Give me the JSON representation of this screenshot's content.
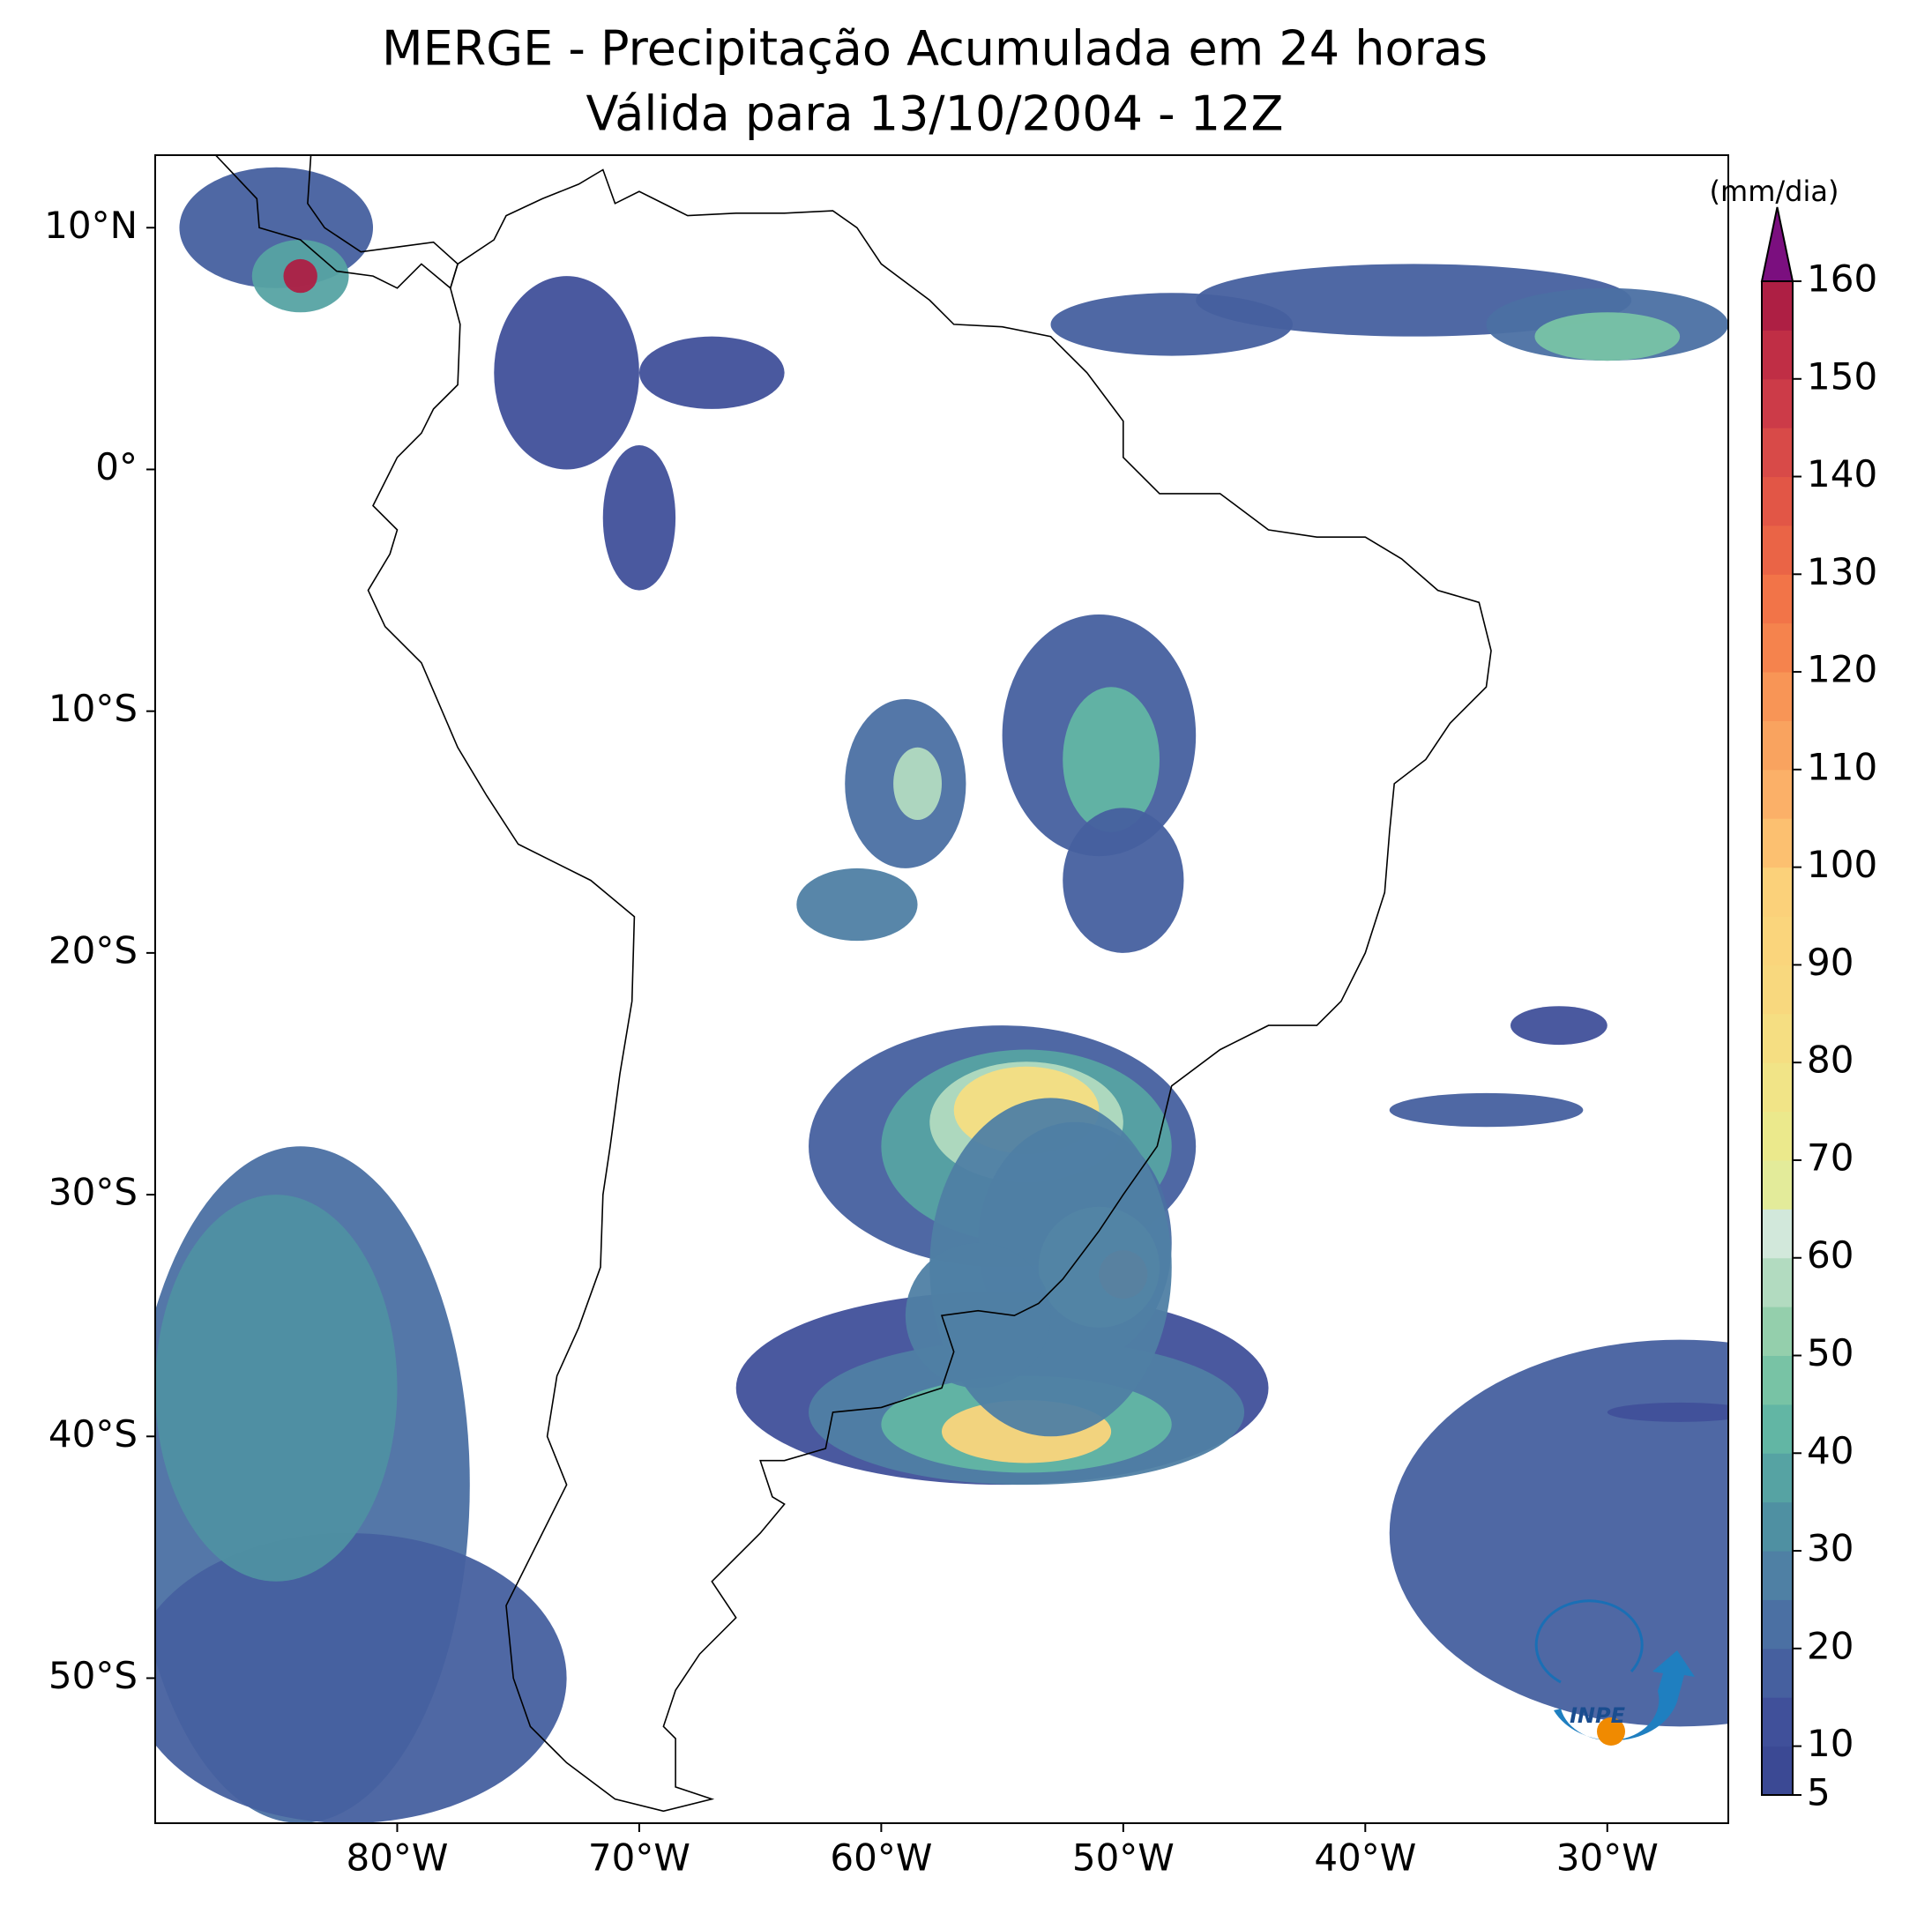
{
  "title": "MERGE - Precipitação Acumulada em 24 horas",
  "subtitle": "Válida para 13/10/2004 - 12Z",
  "map": {
    "xlim": [
      -90,
      -25
    ],
    "ylim": [
      -56,
      13
    ],
    "xticks": [
      {
        "value": -80,
        "label": "80°W"
      },
      {
        "value": -70,
        "label": "70°W"
      },
      {
        "value": -60,
        "label": "60°W"
      },
      {
        "value": -50,
        "label": "50°W"
      },
      {
        "value": -40,
        "label": "40°W"
      },
      {
        "value": -30,
        "label": "30°W"
      }
    ],
    "yticks": [
      {
        "value": 10,
        "label": "10°N"
      },
      {
        "value": 0,
        "label": "0°"
      },
      {
        "value": -10,
        "label": "10°S"
      },
      {
        "value": -20,
        "label": "20°S"
      },
      {
        "value": -30,
        "label": "30°S"
      },
      {
        "value": -40,
        "label": "40°S"
      },
      {
        "value": -50,
        "label": "50°S"
      }
    ]
  },
  "colorbar": {
    "label": "(mm/dia)",
    "lim": [
      5,
      160
    ],
    "ticks": [
      5,
      10,
      20,
      30,
      40,
      50,
      60,
      70,
      80,
      90,
      100,
      110,
      120,
      130,
      140,
      150,
      160
    ],
    "colors": [
      "#3b4994",
      "#40509a",
      "#46609f",
      "#4b70a3",
      "#4f80a4",
      "#4f90a2",
      "#56a3a3",
      "#62b6a4",
      "#78c3a5",
      "#94cfac",
      "#b2dbc0",
      "#d2e8db",
      "#e3eb9a",
      "#ebe98c",
      "#f1e487",
      "#f5de82",
      "#f8d87e",
      "#fad57c",
      "#fbd17a",
      "#fcc070",
      "#fbb068",
      "#f9a35f",
      "#f89556",
      "#f5834d",
      "#f27448",
      "#ea6446",
      "#e25646",
      "#d84a48",
      "#cc3b48",
      "#c02e45",
      "#ae1f44"
    ],
    "extend_color": "#7b0f7f"
  },
  "logo": "INPE"
}
